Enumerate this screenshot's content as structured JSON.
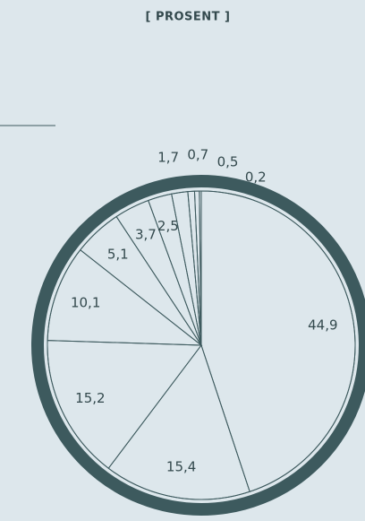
{
  "chart_data": {
    "type": "pie",
    "title": "[ PROSENT ]",
    "values": [
      44.9,
      15.4,
      15.2,
      10.1,
      5.1,
      3.7,
      2.5,
      1.7,
      0.7,
      0.5,
      0.2
    ],
    "value_labels": [
      "44,9",
      "15,4",
      "15,2",
      "10,1",
      "5,1",
      "3,7",
      "2,5",
      "1,7",
      "0,7",
      "0,5",
      "0,2"
    ],
    "color": "#3d5a5e"
  }
}
